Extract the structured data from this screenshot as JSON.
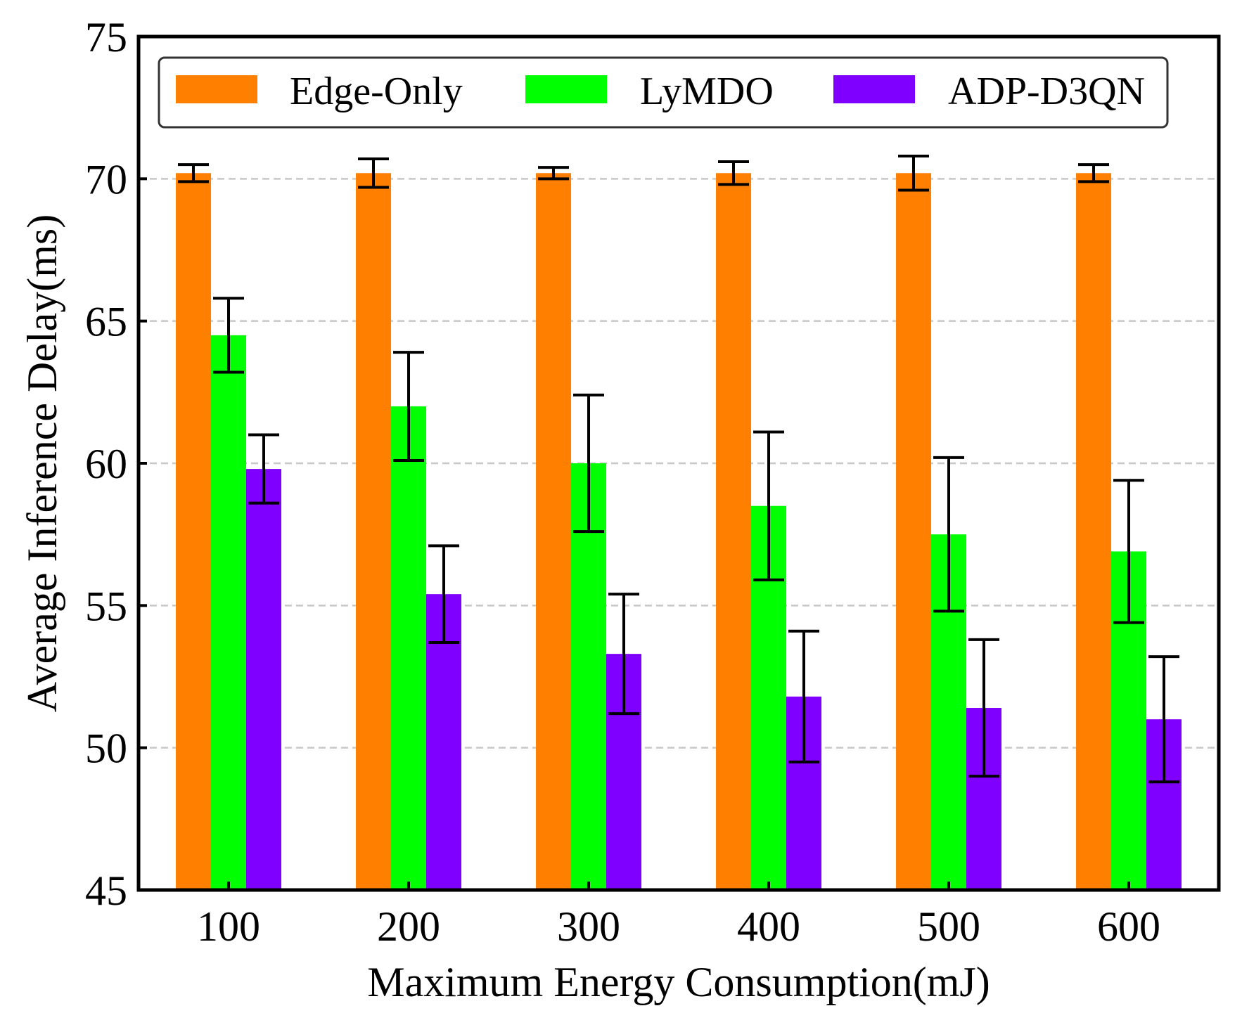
{
  "chart_data": {
    "type": "bar",
    "title": "",
    "xlabel": "Maximum Energy Consumption(mJ)",
    "ylabel": "Average Inference Delay(ms)",
    "categories": [
      "100",
      "200",
      "300",
      "400",
      "500",
      "600"
    ],
    "ylim": [
      45,
      75
    ],
    "yticks": [
      45,
      50,
      55,
      60,
      65,
      70,
      75
    ],
    "grid": "horizontal-dashed",
    "legend_position": "top",
    "series": [
      {
        "name": "Edge-Only",
        "color": "#ff7f00",
        "values": [
          70.2,
          70.2,
          70.2,
          70.2,
          70.2,
          70.2
        ],
        "err_low": [
          69.9,
          69.7,
          70.0,
          69.8,
          69.6,
          69.9
        ],
        "err_high": [
          70.5,
          70.7,
          70.4,
          70.6,
          70.8,
          70.5
        ]
      },
      {
        "name": "LyMDO",
        "color": "#00ff00",
        "values": [
          64.5,
          62.0,
          60.0,
          58.5,
          57.5,
          56.9
        ],
        "err_low": [
          63.2,
          60.1,
          57.6,
          55.9,
          54.8,
          54.4
        ],
        "err_high": [
          65.8,
          63.9,
          62.4,
          61.1,
          60.2,
          59.4
        ]
      },
      {
        "name": "ADP-D3QN",
        "color": "#8000ff",
        "values": [
          59.8,
          55.4,
          53.3,
          51.8,
          51.4,
          51.0
        ],
        "err_low": [
          58.6,
          53.7,
          51.2,
          49.5,
          49.0,
          48.8
        ],
        "err_high": [
          61.0,
          57.1,
          55.4,
          54.1,
          53.8,
          53.2
        ]
      }
    ]
  }
}
